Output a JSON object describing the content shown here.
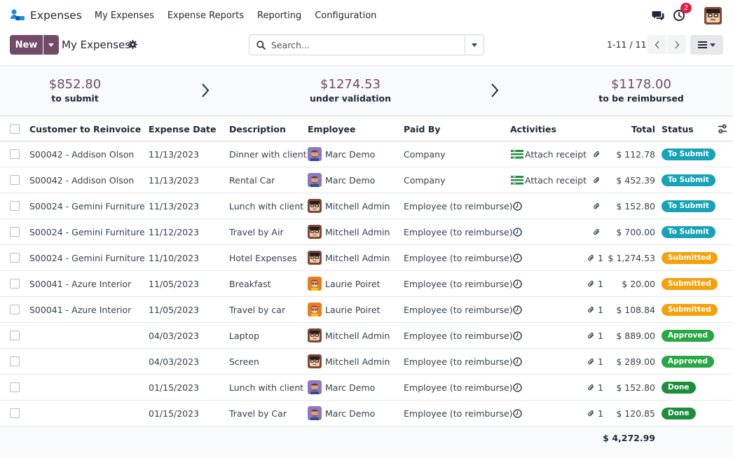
{
  "nav": {
    "app_name": "Expenses",
    "menu": [
      "My Expenses",
      "Expense Reports",
      "Reporting",
      "Configuration"
    ],
    "activity_count": "2"
  },
  "control": {
    "new_label": "New",
    "title": "My Expenses",
    "search_placeholder": "Search...",
    "pager": "1-11 / 11"
  },
  "summary": [
    {
      "amount": "$852.80",
      "label": "to submit"
    },
    {
      "amount": "$1274.53",
      "label": "under validation"
    },
    {
      "amount": "$1178.00",
      "label": "to be reimbursed"
    }
  ],
  "table": {
    "columns": {
      "customer": "Customer to Reinvoice",
      "date": "Expense Date",
      "description": "Description",
      "employee": "Employee",
      "paid_by": "Paid By",
      "activities": "Activities",
      "total": "Total",
      "status": "Status"
    },
    "rows": [
      {
        "customer": "S00042 - Addison Olson",
        "date": "11/13/2023",
        "description": "Dinner with client",
        "employee": "Marc Demo",
        "avatar": "marc",
        "paid_by": "Company",
        "activity": "Attach receipt",
        "attachments": "",
        "total": "$ 112.78",
        "status": "To Submit",
        "status_color": "#17a2b8"
      },
      {
        "customer": "S00042 - Addison Olson",
        "date": "11/13/2023",
        "description": "Rental Car",
        "employee": "Marc Demo",
        "avatar": "marc",
        "paid_by": "Company",
        "activity": "Attach receipt",
        "attachments": "",
        "total": "$ 452.39",
        "status": "To Submit",
        "status_color": "#17a2b8"
      },
      {
        "customer": "S00024 - Gemini Furniture",
        "date": "11/13/2023",
        "description": "Lunch with client",
        "employee": "Mitchell Admin",
        "avatar": "mitchell",
        "paid_by": "Employee (to reimburse)",
        "activity": "",
        "attachments": "",
        "total": "$ 152.80",
        "status": "To Submit",
        "status_color": "#17a2b8"
      },
      {
        "customer": "S00024 - Gemini Furniture",
        "date": "11/12/2023",
        "description": "Travel by Air",
        "employee": "Mitchell Admin",
        "avatar": "mitchell",
        "paid_by": "Employee (to reimburse)",
        "activity": "",
        "attachments": "",
        "total": "$ 700.00",
        "status": "To Submit",
        "status_color": "#17a2b8"
      },
      {
        "customer": "S00024 - Gemini Furniture",
        "date": "11/10/2023",
        "description": "Hotel Expenses",
        "employee": "Mitchell Admin",
        "avatar": "mitchell",
        "paid_by": "Employee (to reimburse)",
        "activity": "",
        "attachments": "1",
        "total": "$ 1,274.53",
        "status": "Submitted",
        "status_color": "#f3a10c"
      },
      {
        "customer": "S00041 - Azure Interior",
        "date": "11/05/2023",
        "description": "Breakfast",
        "employee": "Laurie Poiret",
        "avatar": "laurie",
        "paid_by": "Employee (to reimburse)",
        "activity": "",
        "attachments": "1",
        "total": "$ 20.00",
        "status": "Submitted",
        "status_color": "#f3a10c"
      },
      {
        "customer": "S00041 - Azure Interior",
        "date": "11/05/2023",
        "description": "Travel by car",
        "employee": "Laurie Poiret",
        "avatar": "laurie",
        "paid_by": "Employee (to reimburse)",
        "activity": "",
        "attachments": "1",
        "total": "$ 108.84",
        "status": "Submitted",
        "status_color": "#f3a10c"
      },
      {
        "customer": "",
        "date": "04/03/2023",
        "description": "Laptop",
        "employee": "Mitchell Admin",
        "avatar": "mitchell",
        "paid_by": "Employee (to reimburse)",
        "activity": "",
        "attachments": "1",
        "total": "$ 889.00",
        "status": "Approved",
        "status_color": "#28a745"
      },
      {
        "customer": "",
        "date": "04/03/2023",
        "description": "Screen",
        "employee": "Mitchell Admin",
        "avatar": "mitchell",
        "paid_by": "Employee (to reimburse)",
        "activity": "",
        "attachments": "1",
        "total": "$ 289.00",
        "status": "Approved",
        "status_color": "#28a745"
      },
      {
        "customer": "",
        "date": "01/15/2023",
        "description": "Lunch with client",
        "employee": "Marc Demo",
        "avatar": "marc",
        "paid_by": "Employee (to reimburse)",
        "activity": "",
        "attachments": "1",
        "total": "$ 152.80",
        "status": "Done",
        "status_color": "#1e8e3e"
      },
      {
        "customer": "",
        "date": "01/15/2023",
        "description": "Travel by Car",
        "employee": "Marc Demo",
        "avatar": "marc",
        "paid_by": "Employee (to reimburse)",
        "activity": "",
        "attachments": "1",
        "total": "$ 120.85",
        "status": "Done",
        "status_color": "#1e8e3e"
      }
    ],
    "grand_total": "$ 4,272.99"
  },
  "colors": {
    "brand": "#714b67",
    "badge_alert": "#e11d48"
  },
  "icons": [
    "expenses-logo-icon",
    "chat-icon",
    "clock-activity-icon",
    "gear-icon",
    "search-icon",
    "caret-down-icon",
    "chevron-left-icon",
    "chevron-right-icon",
    "list-view-icon",
    "paperclip-icon",
    "receipt-activity-icon",
    "sliders-icon"
  ]
}
